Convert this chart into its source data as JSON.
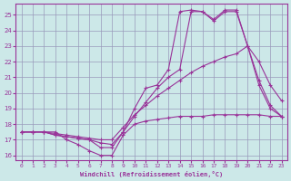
{
  "xlabel": "Windchill (Refroidissement éolien,°C)",
  "bg_color": "#cce8e8",
  "grid_color": "#9999bb",
  "line_color": "#993399",
  "xlim": [
    -0.5,
    23.5
  ],
  "ylim": [
    15.7,
    25.7
  ],
  "xticks": [
    0,
    1,
    2,
    3,
    4,
    5,
    6,
    7,
    8,
    9,
    10,
    11,
    12,
    13,
    14,
    15,
    16,
    17,
    18,
    19,
    20,
    21,
    22,
    23
  ],
  "yticks": [
    16,
    17,
    18,
    19,
    20,
    21,
    22,
    23,
    24,
    25
  ],
  "lines": [
    [
      17.5,
      17.5,
      17.5,
      17.5,
      17.0,
      16.7,
      16.3,
      16.0,
      16.0,
      17.3,
      18.0,
      18.2,
      18.3,
      18.4,
      18.5,
      18.5,
      18.5,
      18.6,
      18.6,
      18.6,
      18.6,
      18.6,
      18.5,
      18.5
    ],
    [
      17.5,
      17.5,
      17.5,
      17.4,
      17.3,
      17.2,
      17.1,
      17.0,
      17.0,
      17.8,
      18.6,
      19.2,
      19.8,
      20.3,
      20.8,
      21.3,
      21.7,
      22.0,
      22.3,
      22.5,
      23.0,
      22.0,
      20.5,
      19.5
    ],
    [
      17.5,
      17.5,
      17.5,
      17.3,
      17.2,
      17.1,
      17.0,
      16.8,
      16.7,
      17.5,
      18.5,
      19.4,
      20.3,
      21.0,
      21.5,
      25.2,
      25.2,
      24.6,
      25.2,
      25.2,
      23.0,
      20.8,
      19.2,
      18.5
    ],
    [
      17.5,
      17.5,
      17.5,
      17.3,
      17.2,
      17.1,
      17.0,
      16.5,
      16.5,
      17.5,
      19.0,
      20.3,
      20.5,
      21.5,
      25.2,
      25.3,
      25.2,
      24.7,
      25.3,
      25.3,
      23.0,
      20.5,
      19.0,
      18.5
    ]
  ]
}
